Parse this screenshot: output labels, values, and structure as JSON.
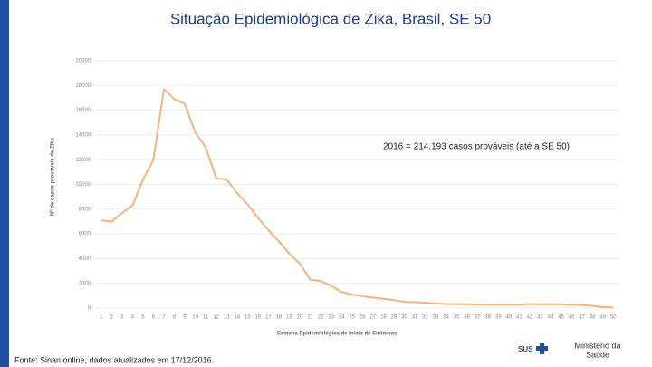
{
  "chart_data": {
    "type": "line",
    "title": "Situação Epidemiológica de Zika, Brasil, SE 50",
    "y_label": "Nº de casos prováveis de Zika",
    "x_label": "Semana Epidemiológica de Início de Sintomas",
    "annotation": "2016 = 214.193 casos prováveis (até a SE 50)",
    "source": "Fonte: Sinan online, dados atualizados em 17/12/2016.",
    "logo_sus": "SUS",
    "logo_ministry": [
      "Ministério da",
      "Saúde"
    ],
    "categories": [
      "1",
      "2",
      "3",
      "4",
      "5",
      "6",
      "7",
      "8",
      "9",
      "10",
      "11",
      "12",
      "13",
      "14",
      "15",
      "16",
      "17",
      "18",
      "19",
      "20",
      "21",
      "22",
      "23",
      "24",
      "25",
      "26",
      "27",
      "28",
      "29",
      "30",
      "31",
      "32",
      "33",
      "34",
      "35",
      "36",
      "37",
      "38",
      "39",
      "40",
      "41",
      "42",
      "43",
      "44",
      "45",
      "46",
      "47",
      "48",
      "49",
      "50"
    ],
    "series": [
      {
        "name": "2016",
        "color": "#f4b47c",
        "values": [
          7100,
          7000,
          7700,
          8300,
          10400,
          12000,
          17700,
          16900,
          16500,
          14200,
          13000,
          10500,
          10400,
          9300,
          8400,
          7300,
          6300,
          5400,
          4400,
          3600,
          2300,
          2200,
          1800,
          1300,
          1100,
          950,
          850,
          750,
          650,
          500,
          480,
          450,
          380,
          330,
          320,
          310,
          290,
          280,
          270,
          270,
          280,
          330,
          300,
          320,
          300,
          280,
          250,
          180,
          80,
          50
        ]
      }
    ],
    "ylim": [
      0,
      20000
    ],
    "yticks": [
      0,
      2000,
      4000,
      6000,
      8000,
      10000,
      12000,
      14000,
      16000,
      18000,
      20000
    ],
    "grid": true
  }
}
